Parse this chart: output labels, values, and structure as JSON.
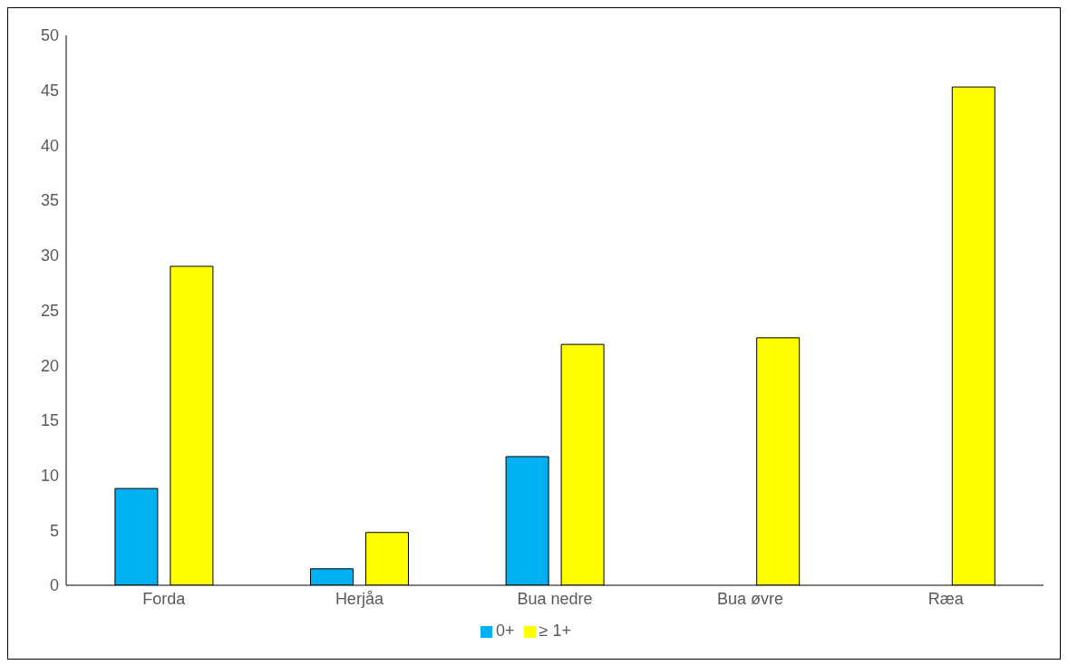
{
  "chart_data": {
    "type": "bar",
    "categories": [
      "Forda",
      "Herjåa",
      "Bua nedre",
      "Bua øvre",
      "Ræa"
    ],
    "series": [
      {
        "name": "0+",
        "color": "#00b0f0",
        "values": [
          8.8,
          1.5,
          11.7,
          null,
          null
        ]
      },
      {
        "name": "≥ 1+",
        "color": "#ffff00",
        "values": [
          29.0,
          4.8,
          21.9,
          22.5,
          45.3
        ]
      }
    ],
    "ylim": [
      0,
      50
    ],
    "yticks": [
      0,
      5,
      10,
      15,
      20,
      25,
      30,
      35,
      40,
      45,
      50
    ],
    "grid": false,
    "legend": "bottom"
  }
}
